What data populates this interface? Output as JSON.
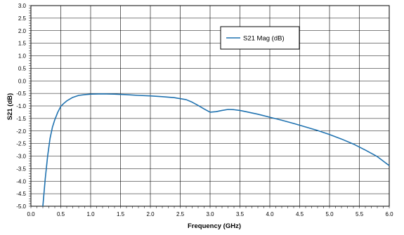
{
  "chart_data": {
    "type": "line",
    "title": "",
    "xlabel": "Frequency (GHz)",
    "ylabel": "S21 (dB)",
    "xlim": [
      0.0,
      6.0
    ],
    "ylim": [
      -5.0,
      3.0
    ],
    "x_ticks": [
      "0.0",
      "0.5",
      "1.0",
      "1.5",
      "2.0",
      "2.5",
      "3.0",
      "3.5",
      "4.0",
      "4.5",
      "5.0",
      "5.5",
      "6.0"
    ],
    "y_ticks": [
      "3.0",
      "2.5",
      "2.0",
      "1.5",
      "1.0",
      "0.5",
      "0.0",
      "-0.5",
      "-1.0",
      "-1.5",
      "-2.0",
      "-2.5",
      "-3.0",
      "-3.5",
      "-4.0",
      "-4.5",
      "-5.0"
    ],
    "grid": true,
    "legend_position": "top-right",
    "series": [
      {
        "name": "S21 Mag (dB)",
        "color": "#1f72b0",
        "x": [
          0.2,
          0.24,
          0.28,
          0.32,
          0.36,
          0.4,
          0.45,
          0.5,
          0.55,
          0.6,
          0.7,
          0.8,
          0.9,
          1.0,
          1.2,
          1.4,
          1.6,
          1.8,
          2.0,
          2.2,
          2.4,
          2.6,
          2.7,
          2.8,
          2.9,
          3.0,
          3.1,
          3.2,
          3.3,
          3.4,
          3.5,
          3.6,
          3.8,
          4.0,
          4.2,
          4.4,
          4.6,
          4.8,
          5.0,
          5.2,
          5.4,
          5.6,
          5.8,
          6.0
        ],
        "y": [
          -5.0,
          -3.9,
          -3.0,
          -2.3,
          -1.85,
          -1.55,
          -1.25,
          -1.02,
          -0.9,
          -0.8,
          -0.66,
          -0.58,
          -0.55,
          -0.53,
          -0.52,
          -0.53,
          -0.55,
          -0.58,
          -0.6,
          -0.63,
          -0.67,
          -0.75,
          -0.85,
          -0.98,
          -1.12,
          -1.25,
          -1.23,
          -1.18,
          -1.14,
          -1.15,
          -1.18,
          -1.23,
          -1.33,
          -1.45,
          -1.57,
          -1.7,
          -1.84,
          -1.98,
          -2.14,
          -2.32,
          -2.52,
          -2.76,
          -3.02,
          -3.38
        ]
      }
    ]
  }
}
